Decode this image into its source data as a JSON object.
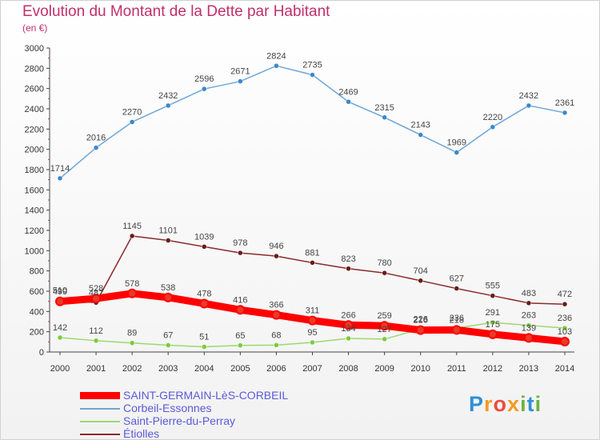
{
  "title": "Evolution du Montant de la Dette par Habitant",
  "subtitle": "(en €)",
  "logo": {
    "text": "Proxiti",
    "letters": [
      "P",
      "r",
      "o",
      "x",
      "i",
      "t",
      "i"
    ],
    "colors": [
      "#2f8fd8",
      "#f29c1f",
      "#ef4b3e",
      "#f29c1f",
      "#6cb33e",
      "#2f8fd8",
      "#6cb33e"
    ]
  },
  "chart_data": {
    "type": "line",
    "title": "Evolution du Montant de la Dette par Habitant",
    "subtitle": "(en €)",
    "x": [
      2000,
      2001,
      2002,
      2003,
      2004,
      2005,
      2006,
      2007,
      2008,
      2009,
      2010,
      2011,
      2012,
      2013,
      2014
    ],
    "ylim": [
      0,
      3000
    ],
    "yticks": [
      0,
      200,
      400,
      600,
      800,
      1000,
      1200,
      1400,
      1600,
      1800,
      2000,
      2200,
      2400,
      2600,
      2800,
      3000
    ],
    "grid": false,
    "legend_position": "bottom-left",
    "series": [
      {
        "name": "SAINT-GERMAIN-LèS-CORBEIL",
        "color": "#ff0000",
        "marker": "#e83a2a",
        "values": [
          499,
          528,
          578,
          538,
          478,
          416,
          366,
          311,
          266,
          259,
          216,
          218,
          175,
          139,
          103
        ]
      },
      {
        "name": "Corbeil-Essonnes",
        "color": "#6ea6d8",
        "marker": "#3a88cc",
        "values": [
          1714,
          2016,
          2270,
          2432,
          2596,
          2671,
          2824,
          2735,
          2469,
          2315,
          2143,
          1969,
          2220,
          2432,
          2361
        ]
      },
      {
        "name": "Saint-Pierre-du-Perray",
        "color": "#9bd870",
        "marker": "#7acc3a",
        "values": [
          142,
          112,
          89,
          67,
          51,
          65,
          68,
          95,
          134,
          127,
          226,
          236,
          291,
          263,
          236
        ]
      },
      {
        "name": "Étiolles",
        "color": "#8a2b2b",
        "marker": "#6a1a1a",
        "values": [
          510,
          487,
          1145,
          1101,
          1039,
          978,
          946,
          881,
          823,
          780,
          704,
          627,
          555,
          483,
          472
        ]
      }
    ]
  }
}
